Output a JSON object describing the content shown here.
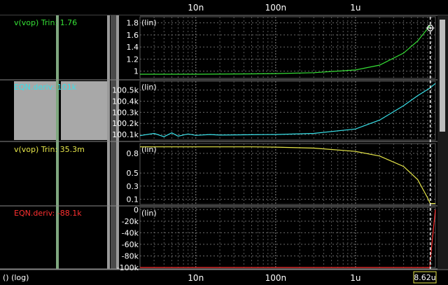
{
  "top_axis_ticks": [
    "10n",
    "100n",
    "1u"
  ],
  "bottom_axis_ticks": [
    "10n",
    "100n",
    "1u"
  ],
  "x_axis_label": "() (log)",
  "cursor_readout": "8.62u",
  "colors": {
    "green": "#36e036",
    "cyan": "#38e0e8",
    "yellow": "#e8e84a",
    "red": "#ff3030"
  },
  "chart_data": [
    {
      "type": "line",
      "series_label": "v(vop) Trin: 1.76",
      "scale_label": "(lin)",
      "color": "#36e036",
      "x_scale": "log",
      "xlim": [
        2e-09,
        1e-05
      ],
      "ylim": [
        0.88,
        1.9
      ],
      "yticks": [
        "1.8",
        "1.6",
        "1.4",
        "1.2",
        "1"
      ],
      "ytick_values": [
        1.8,
        1.6,
        1.4,
        1.2,
        1.0
      ],
      "x": [
        2e-09,
        1e-08,
        5e-08,
        1e-07,
        3e-07,
        1e-06,
        2e-06,
        4e-06,
        6e-06,
        8.62e-06
      ],
      "y": [
        0.95,
        0.95,
        0.955,
        0.96,
        0.975,
        1.02,
        1.1,
        1.3,
        1.5,
        1.76
      ]
    },
    {
      "type": "line",
      "series_label": "EQN.deriv: 101k",
      "scale_label": "(lin)",
      "color": "#38e0e8",
      "x_scale": "log",
      "xlim": [
        2e-09,
        1e-05
      ],
      "ylim": [
        100050,
        100580
      ],
      "yticks": [
        "100.5k",
        "100.4k",
        "100.3k",
        "100.2k",
        "100.1k"
      ],
      "ytick_values": [
        100500,
        100400,
        100300,
        100200,
        100100
      ],
      "x": [
        2e-09,
        3e-09,
        4e-09,
        5e-09,
        6e-09,
        8e-09,
        1e-08,
        1.5e-08,
        2e-08,
        5e-08,
        1e-07,
        3e-07,
        1e-06,
        2e-06,
        4e-06,
        6e-06,
        8.62e-06,
        1e-05
      ],
      "y": [
        100090,
        100110,
        100080,
        100115,
        100085,
        100105,
        100092,
        100100,
        100095,
        100098,
        100100,
        100110,
        100150,
        100230,
        100360,
        100450,
        100520,
        100560
      ]
    },
    {
      "type": "line",
      "series_label": "v(vop) Trin: 35.3m",
      "scale_label": "(lin)",
      "color": "#e8e84a",
      "x_scale": "log",
      "xlim": [
        2e-09,
        1e-05
      ],
      "ylim": [
        0.02,
        0.95
      ],
      "yticks": [
        "0.8",
        "0.5",
        "0.3",
        "0.1"
      ],
      "ytick_values": [
        0.8,
        0.5,
        0.3,
        0.1
      ],
      "x": [
        2e-09,
        1e-08,
        5e-08,
        1e-07,
        3e-07,
        1e-06,
        2e-06,
        4e-06,
        6e-06,
        8e-06,
        8.62e-06,
        1e-05
      ],
      "y": [
        0.9,
        0.9,
        0.9,
        0.895,
        0.88,
        0.83,
        0.76,
        0.6,
        0.4,
        0.12,
        0.0353,
        0.0353
      ]
    },
    {
      "type": "line",
      "series_label": "EQN.deriv: -88.1k",
      "scale_label": "(lin)",
      "color": "#ff3030",
      "x_scale": "log",
      "xlim": [
        2e-09,
        1e-05
      ],
      "ylim": [
        -100000,
        4000
      ],
      "yticks": [
        "0",
        "-20k",
        "-40k",
        "-60k",
        "-80k",
        "-100k"
      ],
      "ytick_values": [
        0,
        -20000,
        -40000,
        -60000,
        -80000,
        -100000
      ],
      "x": [
        2e-09,
        8.5e-06,
        8.55e-06,
        8.62e-06,
        1e-05
      ],
      "y": [
        -100000,
        -100000,
        -100000,
        -88100,
        0
      ]
    }
  ],
  "cursor_x": 8.62e-06
}
